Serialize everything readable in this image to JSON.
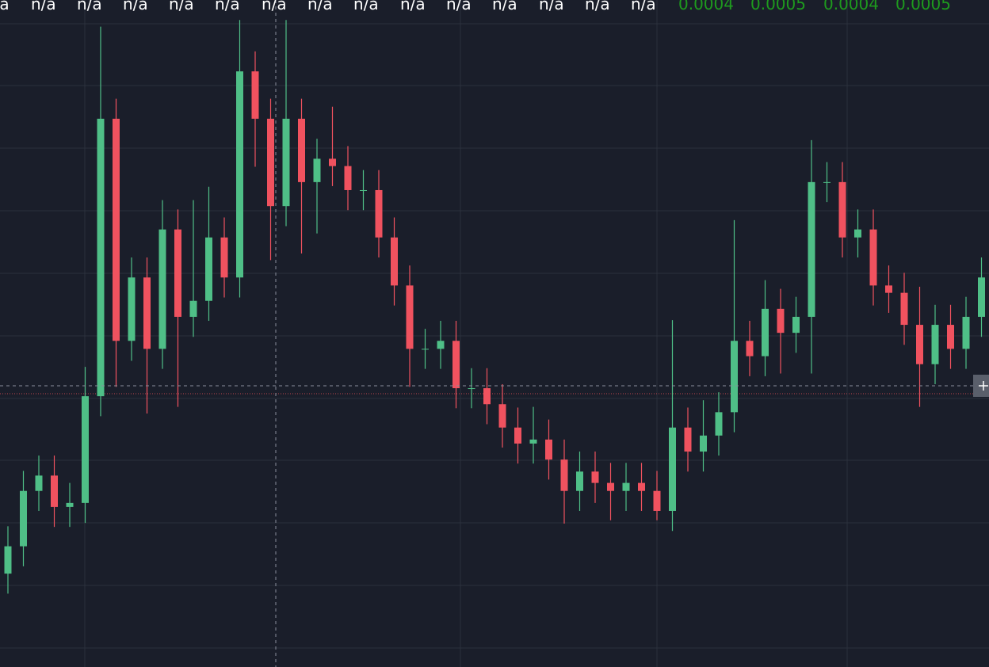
{
  "header": {
    "labels": [
      "n/a",
      "n/a",
      "n/a",
      "n/a",
      "n/a",
      "n/a",
      "n/a",
      "n/a",
      "n/a",
      "n/a",
      "n/a",
      "n/a",
      "n/a",
      "n/a",
      "n/a",
      "0.0004",
      "0.0005",
      "0.0004",
      "0.0005"
    ],
    "label_colors": [
      "#ffffff",
      "#ffffff",
      "#ffffff",
      "#ffffff",
      "#ffffff",
      "#ffffff",
      "#ffffff",
      "#ffffff",
      "#ffffff",
      "#ffffff",
      "#ffffff",
      "#ffffff",
      "#ffffff",
      "#ffffff",
      "#ffffff",
      "#1e9a1e",
      "#1e9a1e",
      "#1e9a1e",
      "#1e9a1e"
    ]
  },
  "chart_data": {
    "type": "candlestick",
    "ylim": [
      0,
      100
    ],
    "up_color": "#4fbf87",
    "down_color": "#f0525f",
    "open": [
      14.0,
      18.1,
      26.4,
      28.7,
      24.0,
      24.6,
      40.6,
      82.2,
      48.9,
      58.4,
      47.7,
      65.6,
      52.5,
      54.9,
      64.4,
      58.4,
      89.3,
      82.2,
      69.1,
      82.2,
      72.7,
      76.2,
      75.1,
      71.5,
      71.5,
      64.4,
      57.2,
      47.7,
      47.7,
      48.9,
      41.8,
      41.8,
      39.4,
      35.9,
      33.5,
      34.1,
      31.1,
      26.4,
      29.3,
      27.6,
      26.4,
      27.6,
      26.4,
      23.4,
      35.9,
      32.3,
      34.7,
      38.2,
      48.9,
      46.6,
      53.7,
      50.1,
      52.5,
      72.7,
      72.7,
      64.4,
      65.6,
      57.2,
      56.1,
      51.3,
      45.4,
      51.3,
      47.7,
      52.5
    ],
    "high": [
      21.1,
      29.4,
      31.7,
      31.7,
      27.6,
      45.0,
      96.0,
      85.2,
      61.4,
      61.4,
      70.0,
      68.6,
      70.0,
      72.0,
      67.4,
      97.0,
      92.3,
      85.2,
      97.0,
      85.2,
      79.2,
      84.0,
      78.1,
      74.5,
      74.5,
      67.4,
      60.2,
      50.7,
      51.9,
      51.9,
      44.8,
      44.8,
      42.4,
      38.9,
      39.0,
      37.1,
      34.1,
      32.3,
      32.3,
      30.6,
      30.6,
      30.6,
      29.4,
      52.0,
      38.9,
      40.0,
      41.2,
      67.0,
      51.9,
      58.0,
      56.7,
      55.5,
      79.0,
      75.7,
      75.7,
      68.6,
      68.6,
      60.2,
      59.1,
      57.0,
      54.3,
      54.3,
      55.5,
      61.4
    ],
    "low": [
      11.0,
      15.1,
      23.4,
      21.0,
      21.0,
      21.6,
      37.6,
      42.0,
      45.9,
      38.0,
      44.7,
      39.0,
      49.5,
      51.9,
      55.4,
      55.4,
      75.0,
      61.0,
      66.1,
      62.0,
      65.0,
      72.1,
      68.5,
      68.5,
      61.4,
      54.2,
      42.0,
      44.7,
      44.7,
      38.8,
      38.8,
      36.4,
      32.9,
      30.5,
      30.5,
      28.1,
      21.5,
      23.4,
      24.6,
      22.0,
      23.4,
      23.4,
      22.0,
      20.4,
      29.3,
      29.3,
      31.7,
      35.2,
      43.6,
      43.6,
      44.0,
      47.1,
      44.0,
      69.7,
      61.4,
      61.4,
      54.2,
      53.1,
      48.3,
      39.0,
      42.4,
      44.7,
      44.7,
      49.5
    ],
    "close": [
      18.1,
      26.4,
      28.7,
      24.0,
      24.6,
      40.6,
      82.2,
      48.9,
      58.4,
      47.7,
      65.6,
      52.5,
      54.9,
      64.4,
      58.4,
      89.3,
      82.2,
      69.1,
      82.2,
      72.7,
      76.2,
      75.1,
      71.5,
      71.5,
      64.4,
      57.2,
      47.7,
      47.7,
      48.9,
      41.8,
      41.8,
      39.4,
      35.9,
      33.5,
      34.1,
      31.1,
      26.4,
      29.3,
      27.6,
      26.4,
      27.6,
      26.4,
      23.4,
      35.9,
      32.3,
      34.7,
      38.2,
      48.9,
      46.6,
      53.7,
      50.1,
      52.5,
      72.7,
      72.7,
      64.4,
      65.6,
      57.2,
      56.1,
      51.3,
      45.4,
      51.3,
      47.7,
      52.5,
      58.4
    ]
  }
}
